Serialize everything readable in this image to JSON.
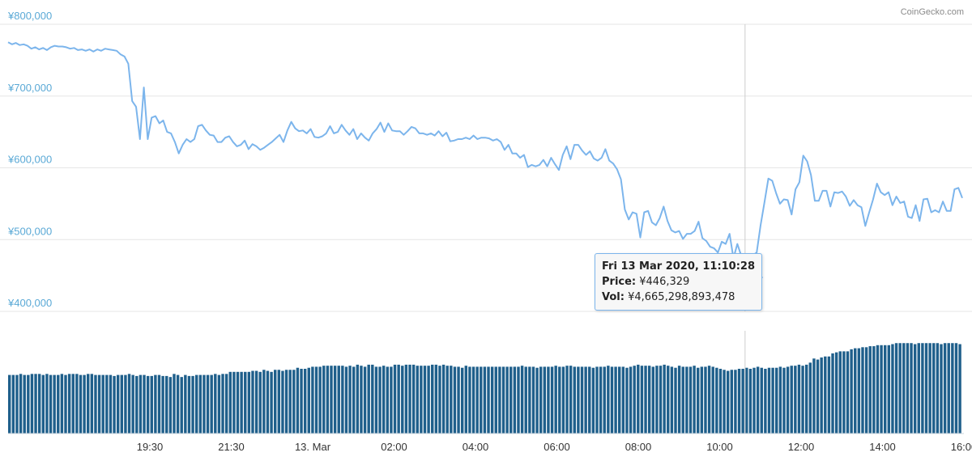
{
  "credit": "CoinGecko.com",
  "tooltip": {
    "date": "Fri 13 Mar 2020, 11:10:28",
    "price_label": "Price:",
    "price_value": "¥446,329",
    "vol_label": "Vol:",
    "vol_value": "¥4,665,298,893,478"
  },
  "colors": {
    "line": "#7cb5ec",
    "volume": "#1f5f8b",
    "axis_label": "#5aa9d6",
    "grid": "#e6e6e6"
  },
  "chart_data": [
    {
      "type": "line",
      "title": "",
      "xlabel": "",
      "ylabel": "",
      "ylim": [
        400000,
        800000
      ],
      "yticks": [
        "¥400,000",
        "¥500,000",
        "¥600,000",
        "¥700,000",
        "¥800,000"
      ],
      "xticks": [
        "19:30",
        "21:30",
        "13. Mar",
        "02:00",
        "04:00",
        "06:00",
        "08:00",
        "10:00",
        "12:00",
        "14:00",
        "16:00"
      ],
      "series": [
        {
          "values": [
            775000,
            772000,
            774000,
            771000,
            772000,
            770000,
            766000,
            768000,
            765000,
            767000,
            764000,
            768000,
            770000,
            769000,
            769000,
            768000,
            766000,
            767000,
            764000,
            765000,
            763000,
            765000,
            762000,
            765000,
            763000,
            766000,
            765000,
            764000,
            763000,
            758000,
            755000,
            745000,
            693000,
            685000,
            640000,
            712000,
            640000,
            670000,
            672000,
            662000,
            666000,
            650000,
            648000,
            636000,
            620000,
            632000,
            640000,
            636000,
            640000,
            658000,
            660000,
            652000,
            646000,
            645000,
            636000,
            636000,
            642000,
            644000,
            636000,
            630000,
            632000,
            638000,
            626000,
            633000,
            630000,
            625000,
            628000,
            632000,
            636000,
            641000,
            646000,
            636000,
            652000,
            664000,
            655000,
            651000,
            652000,
            648000,
            654000,
            643000,
            642000,
            644000,
            648000,
            658000,
            648000,
            650000,
            660000,
            652000,
            646000,
            654000,
            640000,
            648000,
            642000,
            638000,
            648000,
            654000,
            663000,
            650000,
            662000,
            652000,
            651000,
            651000,
            646000,
            651000,
            657000,
            655000,
            648000,
            648000,
            646000,
            648000,
            645000,
            651000,
            644000,
            649000,
            637000,
            638000,
            640000,
            640000,
            642000,
            640000,
            645000,
            640000,
            642000,
            642000,
            641000,
            638000,
            640000,
            636000,
            625000,
            632000,
            620000,
            620000,
            614000,
            618000,
            601000,
            604000,
            602000,
            604000,
            611000,
            602000,
            614000,
            605000,
            597000,
            618000,
            630000,
            612000,
            632000,
            632000,
            624000,
            618000,
            623000,
            613000,
            610000,
            614000,
            626000,
            610000,
            606000,
            598000,
            584000,
            542000,
            528000,
            538000,
            536000,
            503000,
            538000,
            540000,
            524000,
            520000,
            530000,
            546000,
            526000,
            513000,
            510000,
            512000,
            501000,
            508000,
            508000,
            512000,
            525000,
            502000,
            498000,
            490000,
            488000,
            482000,
            497000,
            494000,
            508000,
            474000,
            494000,
            478000,
            446329,
            480000,
            478000,
            482000,
            520000,
            552000,
            585000,
            582000,
            565000,
            550000,
            556000,
            555000,
            535000,
            570000,
            580000,
            617000,
            609000,
            590000,
            554000,
            554000,
            568000,
            568000,
            546000,
            566000,
            565000,
            567000,
            560000,
            547000,
            555000,
            548000,
            545000,
            519000,
            538000,
            556000,
            578000,
            566000,
            562000,
            566000,
            548000,
            560000,
            551000,
            553000,
            532000,
            530000,
            548000,
            526000,
            556000,
            557000,
            538000,
            541000,
            538000,
            553000,
            540000,
            540000,
            570000,
            572000,
            558000
          ]
        }
      ]
    },
    {
      "type": "bar",
      "title": "",
      "xlabel": "",
      "ylabel": "",
      "ylim": [
        0,
        1
      ],
      "series": [
        {
          "values": [
            0.57,
            0.57,
            0.57,
            0.58,
            0.57,
            0.57,
            0.58,
            0.58,
            0.58,
            0.57,
            0.58,
            0.57,
            0.57,
            0.57,
            0.58,
            0.57,
            0.58,
            0.58,
            0.58,
            0.57,
            0.57,
            0.58,
            0.58,
            0.57,
            0.57,
            0.57,
            0.57,
            0.57,
            0.56,
            0.57,
            0.57,
            0.57,
            0.58,
            0.57,
            0.56,
            0.57,
            0.57,
            0.56,
            0.56,
            0.57,
            0.57,
            0.56,
            0.56,
            0.55,
            0.58,
            0.57,
            0.55,
            0.57,
            0.56,
            0.56,
            0.57,
            0.57,
            0.57,
            0.57,
            0.57,
            0.58,
            0.57,
            0.58,
            0.58,
            0.6,
            0.6,
            0.6,
            0.6,
            0.6,
            0.6,
            0.61,
            0.61,
            0.6,
            0.62,
            0.61,
            0.6,
            0.62,
            0.62,
            0.61,
            0.62,
            0.62,
            0.62,
            0.64,
            0.63,
            0.63,
            0.64,
            0.65,
            0.65,
            0.65,
            0.66,
            0.66,
            0.66,
            0.66,
            0.66,
            0.66,
            0.65,
            0.66,
            0.65,
            0.67,
            0.66,
            0.65,
            0.67,
            0.67,
            0.65,
            0.65,
            0.66,
            0.65,
            0.65,
            0.67,
            0.67,
            0.66,
            0.67,
            0.67,
            0.67,
            0.66,
            0.66,
            0.66,
            0.66,
            0.67,
            0.67,
            0.66,
            0.67,
            0.66,
            0.66,
            0.65,
            0.65,
            0.64,
            0.66,
            0.65,
            0.65,
            0.65,
            0.65,
            0.65,
            0.65,
            0.65,
            0.65,
            0.65,
            0.65,
            0.65,
            0.65,
            0.65,
            0.65,
            0.66,
            0.65,
            0.65,
            0.65,
            0.64,
            0.65,
            0.65,
            0.65,
            0.65,
            0.66,
            0.65,
            0.65,
            0.66,
            0.66,
            0.65,
            0.65,
            0.65,
            0.65,
            0.65,
            0.64,
            0.65,
            0.65,
            0.65,
            0.66,
            0.65,
            0.65,
            0.65,
            0.65,
            0.64,
            0.65,
            0.66,
            0.67,
            0.66,
            0.66,
            0.66,
            0.65,
            0.66,
            0.66,
            0.67,
            0.66,
            0.65,
            0.64,
            0.66,
            0.65,
            0.65,
            0.65,
            0.66,
            0.64,
            0.65,
            0.65,
            0.66,
            0.65,
            0.64,
            0.63,
            0.62,
            0.61,
            0.62,
            0.62,
            0.63,
            0.63,
            0.64,
            0.63,
            0.64,
            0.65,
            0.64,
            0.63,
            0.64,
            0.64,
            0.64,
            0.65,
            0.64,
            0.65,
            0.66,
            0.66,
            0.67,
            0.66,
            0.67,
            0.69,
            0.73,
            0.72,
            0.74,
            0.75,
            0.75,
            0.78,
            0.79,
            0.8,
            0.8,
            0.8,
            0.82,
            0.83,
            0.83,
            0.84,
            0.84,
            0.85,
            0.85,
            0.86,
            0.86,
            0.86,
            0.86,
            0.87,
            0.88,
            0.88,
            0.88,
            0.88,
            0.88,
            0.87,
            0.88,
            0.88,
            0.88,
            0.88,
            0.88,
            0.88,
            0.87,
            0.88,
            0.88,
            0.88,
            0.88,
            0.87
          ]
        }
      ]
    }
  ]
}
